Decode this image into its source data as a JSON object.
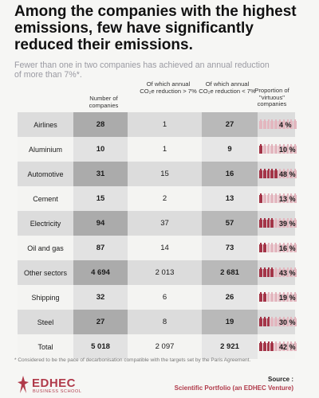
{
  "title": "Among the companies with the highest emissions, few have significantly reduced their emissions.",
  "subtitle": "Fewer than one in two companies has achieved an annual reduction of more than 7%*.",
  "headers": {
    "num_companies": "Number of companies",
    "reduction_gt7_line1": "Of which annual",
    "reduction_gt7_line2": "CO₂e reduction > 7%",
    "reduction_lt7_line1": "Of which annual",
    "reduction_lt7_line2": "CO₂e reduction < 7%",
    "proportion": "Proportion of \"virtuous\" companies"
  },
  "rows": [
    {
      "sector": "Airlines",
      "total": "28",
      "gt7": "1",
      "lt7": "27",
      "pct": "4 %",
      "share": 0.04
    },
    {
      "sector": "Aluminium",
      "total": "10",
      "gt7": "1",
      "lt7": "9",
      "pct": "10 %",
      "share": 0.1
    },
    {
      "sector": "Automotive",
      "total": "31",
      "gt7": "15",
      "lt7": "16",
      "pct": "48 %",
      "share": 0.48
    },
    {
      "sector": "Cement",
      "total": "15",
      "gt7": "2",
      "lt7": "13",
      "pct": "13 %",
      "share": 0.13
    },
    {
      "sector": "Electricity",
      "total": "94",
      "gt7": "37",
      "lt7": "57",
      "pct": "39 %",
      "share": 0.39
    },
    {
      "sector": "Oil and gas",
      "total": "87",
      "gt7": "14",
      "lt7": "73",
      "pct": "16 %",
      "share": 0.16
    },
    {
      "sector": "Other sectors",
      "total": "4 694",
      "gt7": "2 013",
      "lt7": "2 681",
      "pct": "43 %",
      "share": 0.43
    },
    {
      "sector": "Shipping",
      "total": "32",
      "gt7": "6",
      "lt7": "26",
      "pct": "19 %",
      "share": 0.19
    },
    {
      "sector": "Steel",
      "total": "27",
      "gt7": "8",
      "lt7": "19",
      "pct": "30 %",
      "share": 0.3
    },
    {
      "sector": "Total",
      "total": "5 018",
      "gt7": "2 097",
      "lt7": "2 921",
      "pct": "42 %",
      "share": 0.42
    }
  ],
  "footnote": "* Considered to be the pace of decarbonisation compatible with the targets set by the Paris Agreement.",
  "logo": {
    "name": "EDHEC",
    "sub": "BUSINESS SCHOOL"
  },
  "source": {
    "label": "Source :",
    "value": "Scientific Portfolio (an EDHEC Venture)"
  },
  "colors": {
    "accent": "#a43548",
    "light_accent": "#e3b7bf",
    "brand": "#b03a4a"
  }
}
